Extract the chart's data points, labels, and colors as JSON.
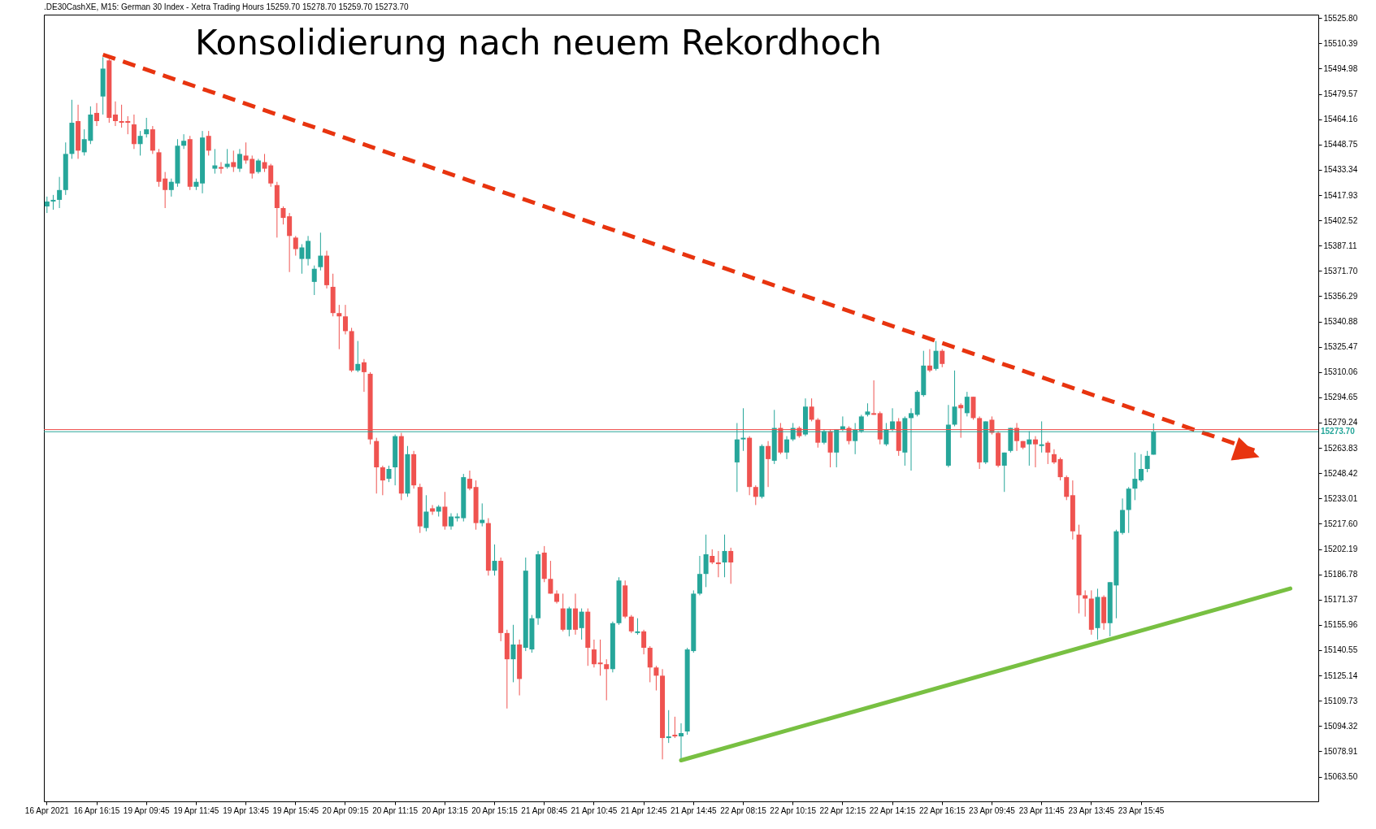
{
  "chart_data": {
    "type": "candlestick",
    "title": "Konsolidierung nach neuem Rekordhoch",
    "subtitle": ".DE30CashXE, M15:  German 30 Index  - Xetra Trading Hours  15259.70 15278.70 15259.70 15273.70",
    "categories": [
      "16 Apr 2021",
      null,
      null,
      null,
      null,
      null,
      null,
      null,
      "16 Apr 16:15",
      null,
      null,
      null,
      null,
      null,
      null,
      null,
      "19 Apr 09:45",
      null,
      null,
      null,
      null,
      null,
      null,
      null,
      "19 Apr 11:45",
      null,
      null,
      null,
      null,
      null,
      null,
      null,
      "19 Apr 13:45",
      null,
      null,
      null,
      null,
      null,
      null,
      null,
      "19 Apr 15:45",
      null,
      null,
      null,
      null,
      null,
      null,
      null,
      "20 Apr 09:15",
      null,
      null,
      null,
      null,
      null,
      null,
      null,
      "20 Apr 11:15",
      null,
      null,
      null,
      null,
      null,
      null,
      null,
      "20 Apr 13:15",
      null,
      null,
      null,
      null,
      null,
      null,
      null,
      "20 Apr 15:15",
      null,
      null,
      null,
      null,
      null,
      null,
      null,
      "21 Apr 08:45",
      null,
      null,
      null,
      null,
      null,
      null,
      null,
      "21 Apr 10:45",
      null,
      null,
      null,
      null,
      null,
      null,
      null,
      "21 Apr 12:45",
      null,
      null,
      null,
      null,
      null,
      null,
      null,
      "21 Apr 14:45",
      null,
      null,
      null,
      null,
      null,
      null,
      null,
      "22 Apr 08:15",
      null,
      null,
      null,
      null,
      null,
      null,
      null,
      "22 Apr 10:15",
      null,
      null,
      null,
      null,
      null,
      null,
      null,
      "22 Apr 12:15",
      null,
      null,
      null,
      null,
      null,
      null,
      null,
      "22 Apr 14:15",
      null,
      null,
      null,
      null,
      null,
      null,
      null,
      "22 Apr 16:15",
      null,
      null,
      null,
      null,
      null,
      null,
      null,
      "23 Apr 09:45",
      null,
      null,
      null,
      null,
      null,
      null,
      null,
      "23 Apr 11:45",
      null,
      null,
      null,
      null,
      null,
      null,
      null,
      "23 Apr 13:45",
      null,
      null,
      null,
      null,
      null,
      null,
      null,
      "23 Apr 15:45",
      null,
      null,
      null,
      null,
      null,
      null,
      null,
      null,
      null,
      null,
      null,
      null,
      null,
      null,
      null,
      null,
      null,
      null,
      null,
      null,
      null,
      null,
      null,
      null,
      null,
      null,
      null,
      null
    ],
    "ohlc": [
      [
        15411,
        15417,
        15407,
        15414
      ],
      [
        15414,
        15418,
        15409,
        15415
      ],
      [
        15415,
        15429,
        15410,
        15421
      ],
      [
        15421,
        15450,
        15418,
        15443
      ],
      [
        15443,
        15476,
        15440,
        15462
      ],
      [
        15463,
        15473,
        15440,
        15445
      ],
      [
        15444,
        15458,
        15442,
        15452
      ],
      [
        15451,
        15472,
        15449,
        15467
      ],
      [
        15468,
        15474,
        15460,
        15463
      ],
      [
        15478,
        15502,
        15467,
        15495
      ],
      [
        15500,
        15501,
        15462,
        15465
      ],
      [
        15467,
        15475,
        15460,
        15463
      ],
      [
        15463,
        15473,
        15459,
        15462
      ],
      [
        15463,
        15466,
        15455,
        15462
      ],
      [
        15461,
        15467,
        15446,
        15449
      ],
      [
        15449,
        15457,
        15442,
        15454
      ],
      [
        15455,
        15465,
        15453,
        15458
      ],
      [
        15458,
        15460,
        15443,
        15445
      ],
      [
        15444,
        15446,
        15423,
        15426
      ],
      [
        15428,
        15432,
        15410,
        15421
      ],
      [
        15421,
        15428,
        15417,
        15426
      ],
      [
        15425,
        15452,
        15423,
        15448
      ],
      [
        15448,
        15455,
        15446,
        15451
      ],
      [
        15452,
        15454,
        15421,
        15423
      ],
      [
        15423,
        15428,
        15421,
        15426
      ],
      [
        15425,
        15457,
        15419,
        15453
      ],
      [
        15454,
        15457,
        15442,
        15445
      ],
      [
        15434,
        15446,
        15431,
        15436
      ],
      [
        15435,
        15438,
        15431,
        15434
      ],
      [
        15435,
        15446,
        15434,
        15437
      ],
      [
        15438,
        15445,
        15432,
        15435
      ],
      [
        15434,
        15446,
        15432,
        15443
      ],
      [
        15442,
        15450,
        15437,
        15439
      ],
      [
        15440,
        15442,
        15428,
        15431
      ],
      [
        15432,
        15440,
        15431,
        15439
      ],
      [
        15438,
        15443,
        15432,
        15434
      ],
      [
        15436,
        15437,
        15423,
        15425
      ],
      [
        15424,
        15426,
        15392,
        15410
      ],
      [
        15410,
        15411,
        15400,
        15404
      ],
      [
        15405,
        15407,
        15371,
        15393
      ],
      [
        15392,
        15393,
        15381,
        15385
      ],
      [
        15379,
        15388,
        15370,
        15386
      ],
      [
        15379,
        15393,
        15375,
        15390
      ],
      [
        15365,
        15375,
        15357,
        15373
      ],
      [
        15374,
        15395,
        15372,
        15381
      ],
      [
        15381,
        15384,
        15361,
        15363
      ],
      [
        15362,
        15370,
        15344,
        15346
      ],
      [
        15346,
        15351,
        15324,
        15344
      ],
      [
        15344,
        15351,
        15333,
        15335
      ],
      [
        15335,
        15337,
        15310,
        15311
      ],
      [
        15311,
        15329,
        15310,
        15315
      ],
      [
        15316,
        15318,
        15298,
        15310
      ],
      [
        15309,
        15310,
        15266,
        15269
      ],
      [
        15268,
        15270,
        15236,
        15252
      ],
      [
        15252,
        15253,
        15235,
        15244
      ],
      [
        15245,
        15253,
        15243,
        15251
      ],
      [
        15252,
        15272,
        15241,
        15271
      ],
      [
        15271,
        15273,
        15232,
        15236
      ],
      [
        15236,
        15265,
        15234,
        15260
      ],
      [
        15260,
        15262,
        15239,
        15241
      ],
      [
        15240,
        15242,
        15212,
        15216
      ],
      [
        15215,
        15235,
        15213,
        15225
      ],
      [
        15227,
        15229,
        15223,
        15225
      ],
      [
        15225,
        15229,
        15222,
        15228
      ],
      [
        15228,
        15237,
        15214,
        15216
      ],
      [
        15216,
        15224,
        15214,
        15222
      ],
      [
        15221,
        15224,
        15219,
        15222
      ],
      [
        15221,
        15248,
        15219,
        15246
      ],
      [
        15245,
        15250,
        15238,
        15239
      ],
      [
        15240,
        15244,
        15214,
        15218
      ],
      [
        15218,
        15230,
        15216,
        15220
      ],
      [
        15218,
        15221,
        15186,
        15189
      ],
      [
        15189,
        15205,
        15186,
        15195
      ],
      [
        15195,
        15197,
        15146,
        15151
      ],
      [
        15151,
        15153,
        15105,
        15135
      ],
      [
        15135,
        15156,
        15121,
        15144
      ],
      [
        15144,
        15147,
        15113,
        15123
      ],
      [
        15142,
        15197,
        15140,
        15189
      ],
      [
        15141,
        15162,
        15139,
        15160
      ],
      [
        15160,
        15201,
        15156,
        15199
      ],
      [
        15200,
        15204,
        15182,
        15184
      ],
      [
        15184,
        15195,
        15175,
        15175
      ],
      [
        15175,
        15177,
        15169,
        15170
      ],
      [
        15166,
        15175,
        15152,
        15153
      ],
      [
        15153,
        15167,
        15149,
        15166
      ],
      [
        15166,
        15175,
        15150,
        15153
      ],
      [
        15154,
        15166,
        15147,
        15164
      ],
      [
        15164,
        15166,
        15131,
        15142
      ],
      [
        15141,
        15147,
        15130,
        15132
      ],
      [
        15133,
        15147,
        15125,
        15132
      ],
      [
        15132,
        15135,
        15110,
        15129
      ],
      [
        15129,
        15158,
        15127,
        15157
      ],
      [
        15157,
        15185,
        15156,
        15183
      ],
      [
        15180,
        15183,
        15160,
        15161
      ],
      [
        15161,
        15162,
        15151,
        15152
      ],
      [
        15151,
        15160,
        15150,
        15152
      ],
      [
        15152,
        15153,
        15138,
        15142
      ],
      [
        15142,
        15143,
        15121,
        15130
      ],
      [
        15130,
        15131,
        15116,
        15125
      ],
      [
        15125,
        15129,
        15074,
        15087
      ],
      [
        15087,
        15104,
        15084,
        15088
      ],
      [
        15089,
        15100,
        15087,
        15088
      ],
      [
        15088,
        15096,
        15074,
        15090
      ],
      [
        15091,
        15142,
        15089,
        15141
      ],
      [
        15140,
        15177,
        15139,
        15175
      ],
      [
        15175,
        15198,
        15174,
        15187
      ],
      [
        15187,
        15211,
        15179,
        15199
      ],
      [
        15198,
        15202,
        15193,
        15194
      ],
      [
        15194,
        15201,
        15185,
        15193
      ],
      [
        15194,
        15211,
        15185,
        15201
      ],
      [
        15201,
        15203,
        15181,
        15194
      ],
      [
        15255,
        15279,
        15237,
        15269
      ],
      [
        15269,
        15288,
        15262,
        15270
      ],
      [
        15270,
        15271,
        15235,
        15240
      ],
      [
        15240,
        15241,
        15229,
        15234
      ],
      [
        15234,
        15266,
        15233,
        15265
      ],
      [
        15265,
        15268,
        15240,
        15257
      ],
      [
        15256,
        15287,
        15254,
        15276
      ],
      [
        15276,
        15279,
        15260,
        15261
      ],
      [
        15261,
        15271,
        15257,
        15269
      ],
      [
        15269,
        15279,
        15268,
        15276
      ],
      [
        15276,
        15277,
        15270,
        15271
      ],
      [
        15272,
        15294,
        15271,
        15289
      ],
      [
        15289,
        15294,
        15280,
        15281
      ],
      [
        15281,
        15282,
        15264,
        15267
      ],
      [
        15267,
        15275,
        15266,
        15274
      ],
      [
        15274,
        15275,
        15252,
        15261
      ],
      [
        15261,
        15275,
        15252,
        15275
      ],
      [
        15275,
        15283,
        15274,
        15277
      ],
      [
        15276,
        15277,
        15266,
        15268
      ],
      [
        15268,
        15279,
        15260,
        15275
      ],
      [
        15274,
        15284,
        15273,
        15283
      ],
      [
        15284,
        15291,
        15283,
        15286
      ],
      [
        15285,
        15305,
        15284,
        15284
      ],
      [
        15285,
        15286,
        15266,
        15269
      ],
      [
        15266,
        15279,
        15265,
        15275
      ],
      [
        15275,
        15288,
        15274,
        15280
      ],
      [
        15280,
        15282,
        15259,
        15262
      ],
      [
        15261,
        15283,
        15253,
        15282
      ],
      [
        15282,
        15288,
        15250,
        15285
      ],
      [
        15284,
        15299,
        15283,
        15298
      ],
      [
        15296,
        15323,
        15295,
        15314
      ],
      [
        15314,
        15324,
        15310,
        15311
      ],
      [
        15312,
        15329,
        15311,
        15323
      ],
      [
        15323,
        15324,
        15313,
        15315
      ],
      [
        15253,
        15290,
        15252,
        15278
      ],
      [
        15278,
        15311,
        15277,
        15289
      ],
      [
        15290,
        15291,
        15270,
        15288
      ],
      [
        15285,
        15298,
        15283,
        15295
      ],
      [
        15295,
        15295,
        15281,
        15282
      ],
      [
        15282,
        15283,
        15251,
        15255
      ],
      [
        15255,
        15280,
        15254,
        15280
      ],
      [
        15281,
        15283,
        15272,
        15273
      ],
      [
        15273,
        15274,
        15252,
        15253
      ],
      [
        15253,
        15261,
        15237,
        15261
      ],
      [
        15262,
        15276,
        15261,
        15276
      ],
      [
        15276,
        15279,
        15262,
        15268
      ],
      [
        15268,
        15268,
        15263,
        15264
      ],
      [
        15266,
        15274,
        15253,
        15269
      ],
      [
        15269,
        15271,
        15252,
        15266
      ],
      [
        15265,
        15280,
        15261,
        15266
      ],
      [
        15267,
        15268,
        15254,
        15261
      ],
      [
        15260,
        15263,
        15254,
        15255
      ],
      [
        15257,
        15258,
        15244,
        15246
      ],
      [
        15246,
        15247,
        15232,
        15234
      ],
      [
        15235,
        15244,
        15208,
        15213
      ],
      [
        15211,
        15217,
        15163,
        15174
      ],
      [
        15174,
        15177,
        15161,
        15172
      ],
      [
        15172,
        15177,
        15150,
        15153
      ],
      [
        15154,
        15178,
        15147,
        15173
      ],
      [
        15173,
        15174,
        15153,
        15157
      ],
      [
        15157,
        15182,
        15149,
        15182
      ],
      [
        15180,
        15214,
        15160,
        15213
      ],
      [
        15212,
        15233,
        15211,
        15226
      ],
      [
        15226,
        15240,
        15212,
        15239
      ],
      [
        15239,
        15261,
        15232,
        15245
      ],
      [
        15244,
        15260,
        15243,
        15251
      ],
      [
        15251,
        15262,
        15249,
        15259
      ],
      [
        15259.7,
        15278.7,
        15259.7,
        15273.7
      ],
      null,
      null,
      null,
      null,
      null,
      null,
      null,
      null,
      null,
      null,
      null,
      null,
      null,
      null,
      null,
      null,
      null,
      null,
      null,
      null,
      null,
      null,
      null,
      null,
      null,
      null
    ],
    "colors": [
      "#26a69a",
      "#26a69a",
      "#26a69a",
      "#26a69a",
      "#26a69a",
      "#ef5350",
      "#26a69a",
      "#26a69a",
      "#ef5350",
      "#26a69a",
      "#ef5350",
      "#ef5350",
      "#ef5350",
      "#ef5350",
      "#ef5350",
      "#26a69a",
      "#26a69a",
      "#ef5350",
      "#ef5350",
      "#ef5350",
      "#26a69a",
      "#26a69a",
      "#26a69a",
      "#ef5350",
      "#26a69a",
      "#26a69a",
      "#ef5350",
      "#26a69a",
      "#ef5350",
      "#26a69a",
      "#ef5350",
      "#26a69a",
      "#ef5350",
      "#ef5350",
      "#26a69a",
      "#ef5350",
      "#ef5350",
      "#ef5350",
      "#ef5350",
      "#ef5350",
      "#ef5350",
      "#26a69a",
      "#26a69a",
      "#26a69a",
      "#26a69a",
      "#ef5350",
      "#ef5350",
      "#ef5350",
      "#ef5350",
      "#ef5350",
      "#26a69a",
      "#ef5350",
      "#ef5350",
      "#ef5350",
      "#ef5350",
      "#26a69a",
      "#26a69a",
      "#ef5350",
      "#26a69a",
      "#ef5350",
      "#ef5350",
      "#26a69a",
      "#ef5350",
      "#26a69a",
      "#ef5350",
      "#26a69a",
      "#26a69a",
      "#26a69a",
      "#ef5350",
      "#ef5350",
      "#26a69a",
      "#ef5350",
      "#26a69a",
      "#ef5350",
      "#ef5350",
      "#26a69a",
      "#ef5350",
      "#26a69a",
      "#26a69a",
      "#26a69a",
      "#ef5350",
      "#ef5350",
      "#ef5350",
      "#ef5350",
      "#26a69a",
      "#ef5350",
      "#26a69a",
      "#ef5350",
      "#ef5350",
      "#ef5350",
      "#ef5350",
      "#26a69a",
      "#26a69a",
      "#ef5350",
      "#ef5350",
      "#26a69a",
      "#ef5350",
      "#ef5350",
      "#ef5350",
      "#ef5350",
      "#26a69a",
      "#ef5350",
      "#26a69a",
      "#26a69a",
      "#26a69a",
      "#26a69a",
      "#26a69a",
      "#ef5350",
      "#ef5350",
      "#26a69a",
      "#ef5350",
      "#26a69a",
      "#26a69a",
      "#ef5350",
      "#ef5350",
      "#26a69a",
      "#ef5350",
      "#26a69a",
      "#ef5350",
      "#26a69a",
      "#26a69a",
      "#ef5350",
      "#26a69a",
      "#ef5350",
      "#ef5350",
      "#26a69a",
      "#ef5350",
      "#26a69a",
      "#26a69a",
      "#ef5350",
      "#26a69a",
      "#26a69a",
      "#26a69a",
      "#ef5350",
      "#ef5350",
      "#26a69a",
      "#26a69a",
      "#ef5350",
      "#26a69a",
      "#26a69a",
      "#26a69a",
      "#26a69a",
      "#ef5350",
      "#26a69a",
      "#ef5350",
      "#26a69a",
      "#26a69a",
      "#ef5350",
      "#26a69a",
      "#ef5350",
      "#ef5350",
      "#26a69a",
      "#ef5350",
      "#ef5350",
      "#26a69a",
      "#26a69a",
      "#ef5350",
      "#ef5350",
      "#26a69a",
      "#ef5350",
      "#26a69a",
      "#ef5350",
      "#ef5350",
      "#ef5350",
      "#ef5350",
      "#ef5350",
      "#ef5350",
      "#ef5350",
      "#ef5350",
      "#26a69a",
      "#ef5350",
      "#26a69a",
      "#26a69a",
      "#26a69a",
      "#26a69a",
      "#26a69a",
      "#26a69a",
      "#26a69a",
      "#26a69a",
      null,
      null,
      null,
      null,
      null,
      null,
      null,
      null,
      null,
      null,
      null,
      null,
      null,
      null,
      null,
      null,
      null,
      null,
      null,
      null,
      null,
      null,
      null,
      null,
      null,
      null
    ],
    "series": [
      {
        "type": "line",
        "color": "#e8340f",
        "line_style": "dashed",
        "values": [
          null,
          null,
          null,
          null,
          null,
          null,
          null,
          null,
          null,
          15503.5,
          null,
          null,
          null,
          null,
          null,
          null,
          null,
          null,
          null,
          null,
          null,
          null,
          null,
          null,
          null,
          null,
          null,
          null,
          null,
          null,
          null,
          null,
          null,
          null,
          null,
          null,
          null,
          null,
          null,
          null,
          null,
          null,
          null,
          null,
          null,
          null,
          null,
          null,
          null,
          null,
          null,
          null,
          null,
          null,
          null,
          null,
          null,
          null,
          null,
          null,
          null,
          null,
          null,
          null,
          null,
          null,
          null,
          null,
          null,
          null,
          null,
          null,
          null,
          null,
          null,
          null,
          null,
          null,
          null,
          null,
          null,
          null,
          null,
          null,
          null,
          null,
          null,
          null,
          null,
          null,
          null,
          null,
          null,
          null,
          null,
          null,
          null,
          null,
          null,
          null,
          null,
          null,
          null,
          null,
          null,
          null,
          null,
          null,
          null,
          null,
          null,
          null,
          null,
          null,
          null,
          null,
          null,
          null,
          null,
          null,
          null,
          null,
          null,
          null,
          null,
          null,
          null,
          null,
          null,
          null,
          null,
          null,
          null,
          null,
          null,
          null,
          null,
          null,
          null,
          null,
          null,
          null,
          null,
          null,
          null,
          null,
          null,
          null,
          null,
          null,
          null,
          null,
          null,
          null,
          null,
          null,
          null,
          null,
          null,
          null,
          null,
          null,
          null,
          null,
          null,
          null,
          null,
          null,
          null,
          null,
          null,
          null,
          null,
          null,
          null,
          null,
          null,
          null,
          null,
          null,
          null,
          null,
          null,
          null,
          null,
          null,
          null,
          null,
          null,
          null,
          null,
          null,
          null,
          null,
          null,
          15261.3,
          null,
          null,
          null,
          null,
          null,
          null,
          null,
          null,
          null
        ]
      },
      {
        "type": "line",
        "color": "#78c042",
        "line_style": "solid",
        "values": [
          null,
          null,
          null,
          null,
          null,
          null,
          null,
          null,
          null,
          null,
          null,
          null,
          null,
          null,
          null,
          null,
          null,
          null,
          null,
          null,
          null,
          null,
          null,
          null,
          null,
          null,
          null,
          null,
          null,
          null,
          null,
          null,
          null,
          null,
          null,
          null,
          null,
          null,
          null,
          null,
          null,
          null,
          null,
          null,
          null,
          null,
          null,
          null,
          null,
          null,
          null,
          null,
          null,
          null,
          null,
          null,
          null,
          null,
          null,
          null,
          null,
          null,
          null,
          null,
          null,
          null,
          null,
          null,
          null,
          null,
          null,
          null,
          null,
          null,
          null,
          null,
          null,
          null,
          null,
          null,
          null,
          null,
          null,
          null,
          null,
          null,
          null,
          null,
          null,
          null,
          null,
          null,
          null,
          null,
          null,
          null,
          null,
          null,
          null,
          null,
          null,
          null,
          15073.4,
          null,
          null,
          null,
          null,
          null,
          null,
          null,
          null,
          null,
          null,
          null,
          null,
          null,
          null,
          null,
          null,
          null,
          null,
          null,
          null,
          null,
          null,
          null,
          null,
          null,
          null,
          null,
          null,
          null,
          null,
          null,
          null,
          null,
          null,
          null,
          null,
          null,
          null,
          null,
          null,
          null,
          null,
          null,
          null,
          null,
          null,
          null,
          null,
          null,
          null,
          null,
          null,
          null,
          null,
          null,
          null,
          null,
          null,
          null,
          null,
          null,
          null,
          null,
          null,
          null,
          null,
          null,
          null,
          null,
          null,
          null,
          null,
          null,
          null,
          null,
          null,
          null,
          null,
          null,
          null,
          null,
          null,
          null,
          null,
          null,
          null,
          null,
          null,
          null,
          null,
          null,
          null,
          null,
          null,
          null,
          null,
          null,
          15178.1,
          null,
          null,
          null,
          null
        ]
      }
    ],
    "ref_lines": [
      {
        "axis": "y",
        "value": 15275,
        "color": "#ef5350"
      },
      {
        "axis": "y",
        "value": 15273.7,
        "label": "15273.70",
        "color": "#26a69a"
      }
    ],
    "ylim": [
      15048.4,
      15527.9
    ],
    "yticks": [
      {
        "value": 15525.8,
        "label": "15525.80"
      },
      15510.39,
      15494.98,
      15479.57,
      15464.16,
      15448.75,
      15433.34,
      15417.93,
      15402.52,
      15387.11,
      {
        "value": 15371.7,
        "label": "15371.70"
      },
      15356.29,
      15340.88,
      15325.47,
      15310.06,
      15294.65,
      15279.24,
      15263.83,
      15248.42,
      15233.01,
      {
        "value": 15217.6,
        "label": "15217.60"
      },
      15202.19,
      15186.78,
      15171.37,
      15155.96,
      15140.55,
      15125.14,
      15109.73,
      15094.32,
      15078.91,
      {
        "value": 15063.5,
        "label": "15063.50"
      }
    ]
  }
}
